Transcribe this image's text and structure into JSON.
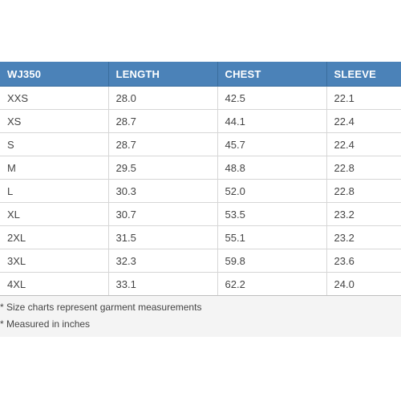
{
  "table": {
    "headers": [
      "WJ350",
      "LENGTH",
      "CHEST",
      "SLEEVE"
    ],
    "rows": [
      [
        "XXS",
        "28.0",
        "42.5",
        "22.1"
      ],
      [
        "XS",
        "28.7",
        "44.1",
        "22.4"
      ],
      [
        "S",
        "28.7",
        "45.7",
        "22.4"
      ],
      [
        "M",
        "29.5",
        "48.8",
        "22.8"
      ],
      [
        "L",
        "30.3",
        "52.0",
        "22.8"
      ],
      [
        "XL",
        "30.7",
        "53.5",
        "23.2"
      ],
      [
        "2XL",
        "31.5",
        "55.1",
        "23.2"
      ],
      [
        "3XL",
        "32.3",
        "59.8",
        "23.6"
      ],
      [
        "4XL",
        "33.1",
        "62.2",
        "24.0"
      ]
    ]
  },
  "notes": [
    "* Size charts represent garment measurements",
    "* Measured in inches"
  ],
  "colors": {
    "header_bg": "#4b82b8",
    "header_text": "#ffffff",
    "panel_bg": "#f4f4f4"
  }
}
